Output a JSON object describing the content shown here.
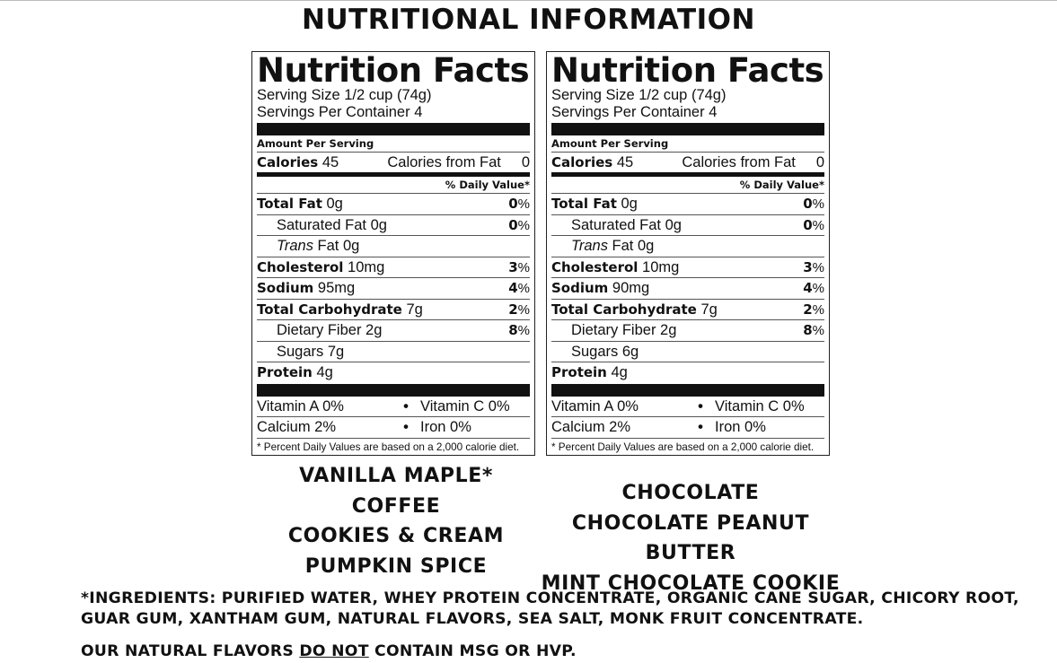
{
  "page_title": "NUTRITIONAL INFORMATION",
  "labels": [
    {
      "title": "Nutrition Facts",
      "serving_size_label": "Serving Size",
      "serving_size": "1/2 cup (74g)",
      "servings_label": "Servings Per Container",
      "servings": "4",
      "amount_per_serving": "Amount Per Serving",
      "calories_label": "Calories",
      "calories": "45",
      "calories_from_fat_label": "Calories from Fat",
      "calories_from_fat": "0",
      "dv_header": "% Daily Value*",
      "total_fat_label": "Total Fat",
      "total_fat": "0g",
      "total_fat_dv": "0",
      "sat_fat_label": "Saturated Fat",
      "sat_fat": "0g",
      "sat_fat_dv": "0",
      "trans_fat_label_italic": "Trans",
      "trans_fat_label": "Fat",
      "trans_fat": "0g",
      "cholesterol_label": "Cholesterol",
      "cholesterol": "10mg",
      "cholesterol_dv": "3",
      "sodium_label": "Sodium",
      "sodium": "95mg",
      "sodium_dv": "4",
      "carb_label": "Total Carbohydrate",
      "carb": "7g",
      "carb_dv": "2",
      "fiber_label": "Dietary Fiber",
      "fiber": "2g",
      "fiber_dv": "8",
      "sugars_label": "Sugars",
      "sugars": "7g",
      "protein_label": "Protein",
      "protein": "4g",
      "vitamin_a": "Vitamin A 0%",
      "vitamin_c": "Vitamin C 0%",
      "calcium": "Calcium 2%",
      "iron": "Iron 0%",
      "bullet": "•",
      "percent_sign": "%",
      "footnote": "* Percent Daily Values are based on a 2,000 calorie diet."
    },
    {
      "title": "Nutrition Facts",
      "serving_size_label": "Serving Size",
      "serving_size": "1/2 cup (74g)",
      "servings_label": "Servings Per Container",
      "servings": "4",
      "amount_per_serving": "Amount Per Serving",
      "calories_label": "Calories",
      "calories": "45",
      "calories_from_fat_label": "Calories from Fat",
      "calories_from_fat": "0",
      "dv_header": "% Daily Value*",
      "total_fat_label": "Total Fat",
      "total_fat": "0g",
      "total_fat_dv": "0",
      "sat_fat_label": "Saturated Fat",
      "sat_fat": "0g",
      "sat_fat_dv": "0",
      "trans_fat_label_italic": "Trans",
      "trans_fat_label": "Fat",
      "trans_fat": "0g",
      "cholesterol_label": "Cholesterol",
      "cholesterol": "10mg",
      "cholesterol_dv": "3",
      "sodium_label": "Sodium",
      "sodium": "90mg",
      "sodium_dv": "4",
      "carb_label": "Total Carbohydrate",
      "carb": "7g",
      "carb_dv": "2",
      "fiber_label": "Dietary Fiber",
      "fiber": "2g",
      "fiber_dv": "8",
      "sugars_label": "Sugars",
      "sugars": "6g",
      "protein_label": "Protein",
      "protein": "4g",
      "vitamin_a": "Vitamin A 0%",
      "vitamin_c": "Vitamin C 0%",
      "calcium": "Calcium 2%",
      "iron": "Iron 0%",
      "bullet": "•",
      "percent_sign": "%",
      "footnote": "* Percent Daily Values are based on a 2,000 calorie diet."
    }
  ],
  "flavors_left": [
    "VANILLA MAPLE*",
    "COFFEE",
    "COOKIES & CREAM",
    "PUMPKIN SPICE"
  ],
  "flavors_right": [
    "CHOCOLATE",
    "CHOCOLATE PEANUT BUTTER",
    "MINT CHOCOLATE COOKIE"
  ],
  "ingredients": "*INGREDIENTS: PURIFIED WATER, WHEY PROTEIN CONCENTRATE, ORGANIC CANE SUGAR, CHICORY ROOT, GUAR GUM, XANTHAM GUM, NATURAL FLAVORS, SEA SALT, MONK FRUIT CONCENTRATE.",
  "natural_note": {
    "before": "OUR NATURAL FLAVORS",
    "underlined": "DO NOT",
    "after": "CONTAIN MSG OR HVP."
  }
}
